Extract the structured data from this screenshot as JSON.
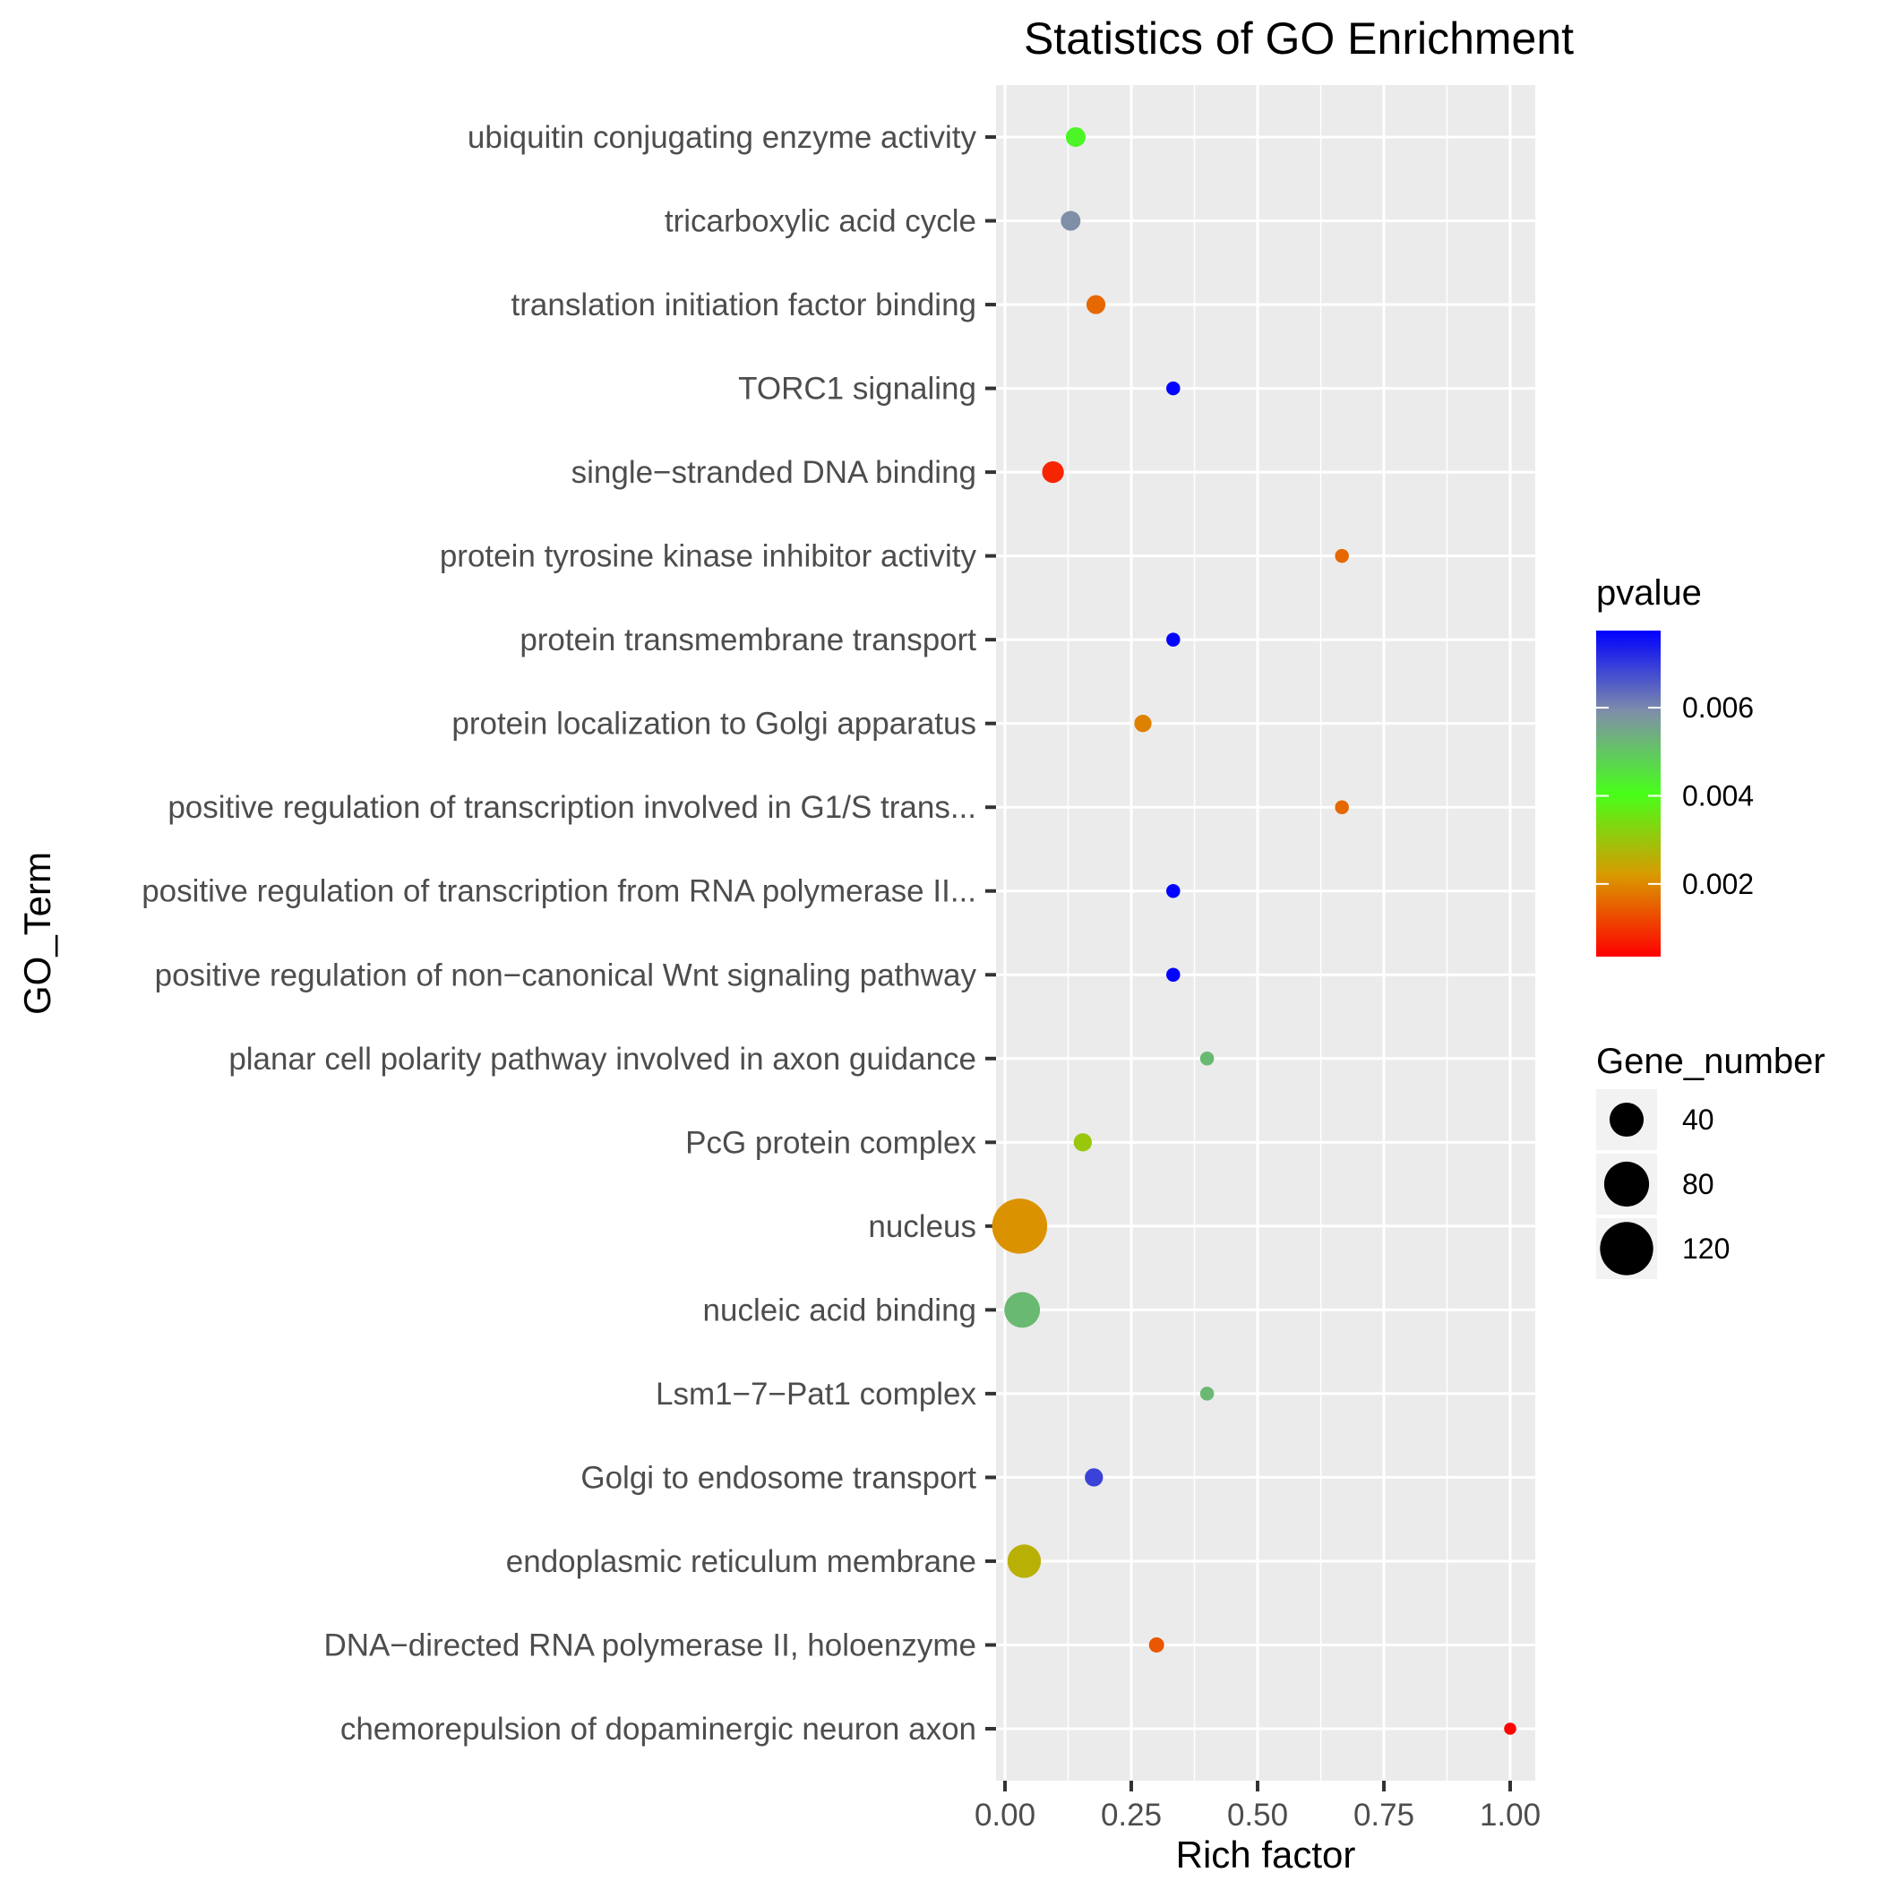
{
  "chart_data": {
    "type": "scatter",
    "title": "Statistics of GO Enrichment",
    "xlabel": "Rich factor",
    "ylabel": "GO_Term",
    "xlim": [
      -0.02,
      1.05
    ],
    "x_ticks": [
      0.0,
      0.25,
      0.5,
      0.75,
      1.0
    ],
    "x_tick_labels": [
      "0.00",
      "0.25",
      "0.50",
      "0.75",
      "1.00"
    ],
    "grid": true,
    "categories": [
      "ubiquitin conjugating enzyme activity",
      "tricarboxylic acid cycle",
      "translation initiation factor binding",
      "TORC1 signaling",
      "single−stranded DNA binding",
      "protein tyrosine kinase inhibitor activity",
      "protein transmembrane transport",
      "protein localization to Golgi apparatus",
      "positive regulation of transcription involved in G1/S trans...",
      "positive regulation of transcription from RNA polymerase II...",
      "positive regulation of non−canonical Wnt signaling pathway",
      "planar cell polarity pathway involved in axon guidance",
      "PcG protein complex",
      "nucleus",
      "nucleic acid binding",
      "Lsm1−7−Pat1 complex",
      "Golgi to endosome transport",
      "endoplasmic reticulum membrane",
      "DNA−directed RNA polymerase II, holoenzyme",
      "chemorepulsion of dopaminergic neuron axon"
    ],
    "points": [
      {
        "term_index": 0,
        "rich_factor": 0.14,
        "pvalue": 0.0042,
        "gene_number": 8
      },
      {
        "term_index": 1,
        "rich_factor": 0.13,
        "pvalue": 0.0059,
        "gene_number": 8
      },
      {
        "term_index": 2,
        "rich_factor": 0.18,
        "pvalue": 0.0016,
        "gene_number": 7
      },
      {
        "term_index": 3,
        "rich_factor": 0.333,
        "pvalue": 0.0077,
        "gene_number": 2
      },
      {
        "term_index": 4,
        "rich_factor": 0.095,
        "pvalue": 0.0008,
        "gene_number": 11
      },
      {
        "term_index": 5,
        "rich_factor": 0.667,
        "pvalue": 0.0016,
        "gene_number": 2
      },
      {
        "term_index": 6,
        "rich_factor": 0.333,
        "pvalue": 0.0077,
        "gene_number": 2
      },
      {
        "term_index": 7,
        "rich_factor": 0.273,
        "pvalue": 0.0019,
        "gene_number": 5
      },
      {
        "term_index": 8,
        "rich_factor": 0.667,
        "pvalue": 0.0016,
        "gene_number": 2
      },
      {
        "term_index": 9,
        "rich_factor": 0.333,
        "pvalue": 0.0077,
        "gene_number": 2
      },
      {
        "term_index": 10,
        "rich_factor": 0.333,
        "pvalue": 0.0077,
        "gene_number": 2
      },
      {
        "term_index": 11,
        "rich_factor": 0.4,
        "pvalue": 0.0052,
        "gene_number": 2
      },
      {
        "term_index": 12,
        "rich_factor": 0.154,
        "pvalue": 0.003,
        "gene_number": 6
      },
      {
        "term_index": 13,
        "rich_factor": 0.029,
        "pvalue": 0.0021,
        "gene_number": 130
      },
      {
        "term_index": 14,
        "rich_factor": 0.034,
        "pvalue": 0.0052,
        "gene_number": 45
      },
      {
        "term_index": 15,
        "rich_factor": 0.4,
        "pvalue": 0.0052,
        "gene_number": 2
      },
      {
        "term_index": 16,
        "rich_factor": 0.176,
        "pvalue": 0.0069,
        "gene_number": 6
      },
      {
        "term_index": 17,
        "rich_factor": 0.038,
        "pvalue": 0.0026,
        "gene_number": 38
      },
      {
        "term_index": 18,
        "rich_factor": 0.3,
        "pvalue": 0.0014,
        "gene_number": 3
      },
      {
        "term_index": 19,
        "rich_factor": 1.0,
        "pvalue": 0.0004,
        "gene_number": 1
      }
    ],
    "color_legend": {
      "title": "pvalue",
      "range": [
        0.00035,
        0.00775
      ],
      "ticks": [
        0.002,
        0.004,
        0.006
      ],
      "tick_labels": [
        "0.002",
        "0.004",
        "0.006"
      ],
      "colors": [
        "#ff0000",
        "#d99a00",
        "#47ff1a",
        "#7f8fa8",
        "#0000ff"
      ],
      "placement": "right"
    },
    "size_legend": {
      "title": "Gene_number",
      "values": [
        40,
        80,
        120
      ],
      "labels": [
        "40",
        "80",
        "120"
      ],
      "placement": "right"
    }
  }
}
